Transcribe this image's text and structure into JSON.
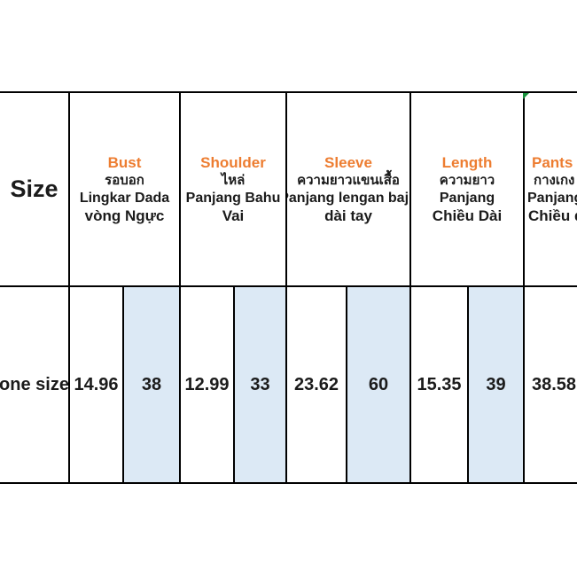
{
  "colors": {
    "accent_orange": "#ED7D31",
    "highlight_blue": "#DCE9F5",
    "grid_line_black": "#000000",
    "text_black": "#1b1b1b",
    "corner_marker_green": "#17913B",
    "background": "#ffffff"
  },
  "table": {
    "size_header": "Size",
    "headers": {
      "bust": {
        "en": "Bust",
        "th": "รอบอก",
        "id": "Lingkar Dada",
        "vi": "vòng Ngực"
      },
      "shoulder": {
        "en": "Shoulder",
        "th": "ไหล่",
        "id": "Panjang Bahu",
        "vi": "Vai"
      },
      "sleeve": {
        "en": "Sleeve",
        "th": "ความยาวแขนเสื้อ",
        "id": "Panjang lengan baju",
        "vi": "dài tay"
      },
      "length": {
        "en": "Length",
        "th": "ความยาว",
        "id": "Panjang",
        "vi": "Chiều Dài"
      },
      "pants": {
        "en": "Pants",
        "th": "กางเกง",
        "id": "Panjang",
        "vi": "Chiều d"
      }
    },
    "row": {
      "size": "one size",
      "bust_in": "14.96",
      "bust_cm": "38",
      "shoulder_in": "12.99",
      "shoulder_cm": "33",
      "sleeve_in": "23.62",
      "sleeve_cm": "60",
      "length_in": "15.35",
      "length_cm": "39",
      "pants_in": "38.58"
    }
  },
  "chart_data": {
    "type": "table",
    "title": "",
    "columns": [
      "Size",
      "Bust",
      "Shoulder",
      "Sleeve",
      "Length",
      "Pants"
    ],
    "rows": [
      {
        "size": "one size",
        "bust": [
          "14.96",
          "38"
        ],
        "shoulder": [
          "12.99",
          "33"
        ],
        "sleeve": [
          "23.62",
          "60"
        ],
        "length": [
          "15.35",
          "39"
        ],
        "pants": [
          "38.58"
        ]
      }
    ],
    "notes": "cm sub-columns are highlighted light blue; header shows English (orange), Thai, Indonesian, Vietnamese; rightmost Pants column clipped by image edge"
  }
}
